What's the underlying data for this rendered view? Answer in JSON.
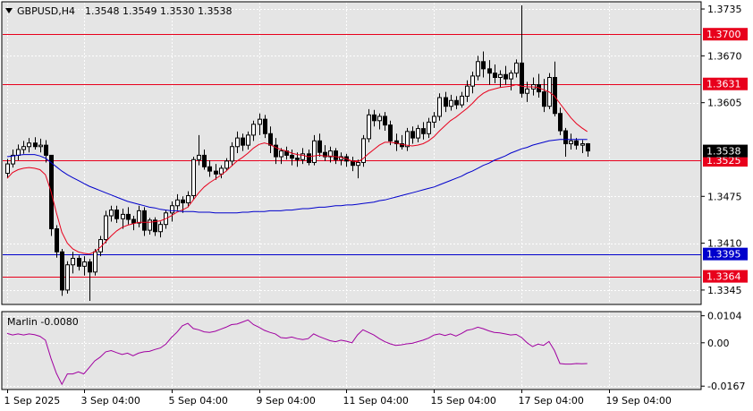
{
  "header": {
    "symbol": "GBPUSD,H4",
    "ohlc": "1.3548 1.3549 1.3530 1.3538"
  },
  "indicator": {
    "label": "Marlin -0.0080"
  },
  "colors": {
    "background": "#e5e5e5",
    "bull_candle": "#ffffff",
    "bear_candle": "#000000",
    "grid": "#ffffff",
    "ma_fast": "#e8001c",
    "ma_slow": "#0000cc",
    "marlin": "#a000a0",
    "level_red": "#e8001c",
    "level_blue": "#0000cc"
  },
  "chart_data": [
    {
      "type": "candlestick",
      "ylim": [
        1.3325,
        1.3745
      ],
      "y_ticks": [
        "1.3735",
        "1.3670",
        "1.3605",
        "1.3475",
        "1.3410",
        "1.3345"
      ],
      "x_ticks": [
        "1 Sep 2025",
        "3 Sep 04:00",
        "5 Sep 04:00",
        "9 Sep 04:00",
        "11 Sep 04:00",
        "15 Sep 04:00",
        "17 Sep 04:00",
        "19 Sep 04:00"
      ],
      "x_tick_index": [
        0,
        14,
        30,
        46,
        62,
        78,
        94,
        110
      ],
      "levels": [
        {
          "value": 1.37,
          "label": "1.3700",
          "color": "red"
        },
        {
          "value": 1.3631,
          "label": "1.3631",
          "color": "red"
        },
        {
          "value": 1.3525,
          "label": "1.3525",
          "color": "red"
        },
        {
          "value": 1.3395,
          "label": "1.3395",
          "color": "blue"
        },
        {
          "value": 1.3364,
          "label": "1.3364",
          "color": "red"
        }
      ],
      "current_price": "1.3538",
      "candles": [
        [
          1.3507,
          1.3527,
          1.35,
          1.352
        ],
        [
          1.352,
          1.354,
          1.3515,
          1.3532
        ],
        [
          1.3532,
          1.3547,
          1.3525,
          1.354
        ],
        [
          1.354,
          1.3552,
          1.3534,
          1.3544
        ],
        [
          1.3544,
          1.3556,
          1.3536,
          1.3549
        ],
        [
          1.3549,
          1.3557,
          1.354,
          1.3544
        ],
        [
          1.3544,
          1.3555,
          1.3536,
          1.3546
        ],
        [
          1.3546,
          1.3553,
          1.3522,
          1.3532
        ],
        [
          1.3532,
          1.3532,
          1.342,
          1.343
        ],
        [
          1.343,
          1.3435,
          1.339,
          1.3398
        ],
        [
          1.3398,
          1.3402,
          1.3337,
          1.3345
        ],
        [
          1.3345,
          1.3385,
          1.334,
          1.338
        ],
        [
          1.338,
          1.3398,
          1.3368,
          1.3389
        ],
        [
          1.3389,
          1.3393,
          1.3372,
          1.3378
        ],
        [
          1.3378,
          1.3392,
          1.3365,
          1.3384
        ],
        [
          1.3384,
          1.3388,
          1.333,
          1.337
        ],
        [
          1.337,
          1.3402,
          1.3365,
          1.3398
        ],
        [
          1.3398,
          1.342,
          1.3392,
          1.3415
        ],
        [
          1.3415,
          1.3455,
          1.341,
          1.3448
        ],
        [
          1.3448,
          1.3462,
          1.344,
          1.3456
        ],
        [
          1.3456,
          1.3462,
          1.3438,
          1.3444
        ],
        [
          1.3444,
          1.3458,
          1.343,
          1.345
        ],
        [
          1.345,
          1.346,
          1.3436,
          1.3443
        ],
        [
          1.3443,
          1.3448,
          1.3428,
          1.3438
        ],
        [
          1.3438,
          1.3462,
          1.3432,
          1.3455
        ],
        [
          1.3455,
          1.346,
          1.342,
          1.3428
        ],
        [
          1.3428,
          1.3445,
          1.3422,
          1.3442
        ],
        [
          1.3442,
          1.3446,
          1.342,
          1.3426
        ],
        [
          1.3426,
          1.344,
          1.3418,
          1.3436
        ],
        [
          1.3436,
          1.3456,
          1.343,
          1.3452
        ],
        [
          1.3452,
          1.3468,
          1.344,
          1.3462
        ],
        [
          1.3462,
          1.3478,
          1.3456,
          1.347
        ],
        [
          1.347,
          1.3475,
          1.3452,
          1.3466
        ],
        [
          1.3466,
          1.3482,
          1.346,
          1.3476
        ],
        [
          1.3476,
          1.353,
          1.347,
          1.3526
        ],
        [
          1.3526,
          1.356,
          1.3518,
          1.3532
        ],
        [
          1.3532,
          1.354,
          1.3512,
          1.3516
        ],
        [
          1.3516,
          1.3525,
          1.3502,
          1.351
        ],
        [
          1.351,
          1.352,
          1.3498,
          1.3506
        ],
        [
          1.3506,
          1.3518,
          1.35,
          1.3514
        ],
        [
          1.3514,
          1.3528,
          1.351,
          1.3524
        ],
        [
          1.3524,
          1.355,
          1.3518,
          1.3544
        ],
        [
          1.3544,
          1.3565,
          1.3535,
          1.3556
        ],
        [
          1.3556,
          1.3562,
          1.3538,
          1.3546
        ],
        [
          1.3546,
          1.3565,
          1.354,
          1.356
        ],
        [
          1.356,
          1.358,
          1.3552,
          1.3575
        ],
        [
          1.3575,
          1.359,
          1.356,
          1.3582
        ],
        [
          1.3582,
          1.3588,
          1.3556,
          1.3562
        ],
        [
          1.3562,
          1.3572,
          1.3535,
          1.3546
        ],
        [
          1.3546,
          1.3556,
          1.352,
          1.353
        ],
        [
          1.353,
          1.3542,
          1.352,
          1.3538
        ],
        [
          1.3538,
          1.3544,
          1.3526,
          1.3532
        ],
        [
          1.3532,
          1.354,
          1.3518,
          1.3528
        ],
        [
          1.3528,
          1.3536,
          1.3516,
          1.3526
        ],
        [
          1.3526,
          1.3542,
          1.352,
          1.3534
        ],
        [
          1.3534,
          1.354,
          1.3518,
          1.3522
        ],
        [
          1.3522,
          1.356,
          1.3518,
          1.3552
        ],
        [
          1.3552,
          1.3562,
          1.353,
          1.3536
        ],
        [
          1.3536,
          1.3546,
          1.3524,
          1.353
        ],
        [
          1.353,
          1.3544,
          1.3522,
          1.3538
        ],
        [
          1.3538,
          1.3542,
          1.352,
          1.3526
        ],
        [
          1.3526,
          1.3536,
          1.3518,
          1.353
        ],
        [
          1.353,
          1.3534,
          1.3516,
          1.3524
        ],
        [
          1.3524,
          1.353,
          1.351,
          1.3518
        ],
        [
          1.3518,
          1.3526,
          1.35,
          1.3522
        ],
        [
          1.3522,
          1.356,
          1.3516,
          1.3555
        ],
        [
          1.3555,
          1.3596,
          1.355,
          1.3588
        ],
        [
          1.3588,
          1.3595,
          1.3572,
          1.358
        ],
        [
          1.358,
          1.359,
          1.3568,
          1.3586
        ],
        [
          1.3586,
          1.3592,
          1.3566,
          1.3574
        ],
        [
          1.3574,
          1.358,
          1.3546,
          1.3552
        ],
        [
          1.3552,
          1.3562,
          1.3538,
          1.3548
        ],
        [
          1.3548,
          1.356,
          1.354,
          1.3544
        ],
        [
          1.3544,
          1.357,
          1.3538,
          1.3565
        ],
        [
          1.3565,
          1.3572,
          1.3548,
          1.3556
        ],
        [
          1.3556,
          1.3574,
          1.355,
          1.3569
        ],
        [
          1.3569,
          1.3578,
          1.3554,
          1.3562
        ],
        [
          1.3562,
          1.3584,
          1.3556,
          1.3578
        ],
        [
          1.3578,
          1.3592,
          1.357,
          1.3586
        ],
        [
          1.3586,
          1.3618,
          1.358,
          1.3612
        ],
        [
          1.3612,
          1.362,
          1.3592,
          1.36
        ],
        [
          1.36,
          1.3616,
          1.3594,
          1.3608
        ],
        [
          1.3608,
          1.3614,
          1.3596,
          1.3602
        ],
        [
          1.3602,
          1.362,
          1.3598,
          1.3614
        ],
        [
          1.3614,
          1.3636,
          1.3606,
          1.3628
        ],
        [
          1.3628,
          1.3648,
          1.3618,
          1.3642
        ],
        [
          1.3642,
          1.367,
          1.3636,
          1.3662
        ],
        [
          1.3662,
          1.3676,
          1.364,
          1.3652
        ],
        [
          1.3652,
          1.3664,
          1.363,
          1.3646
        ],
        [
          1.3646,
          1.3658,
          1.3632,
          1.364
        ],
        [
          1.364,
          1.365,
          1.3626,
          1.3644
        ],
        [
          1.3644,
          1.3656,
          1.363,
          1.3638
        ],
        [
          1.3638,
          1.365,
          1.3622,
          1.3646
        ],
        [
          1.3646,
          1.3665,
          1.364,
          1.366
        ],
        [
          1.366,
          1.374,
          1.3612,
          1.3618
        ],
        [
          1.3618,
          1.3634,
          1.3606,
          1.3624
        ],
        [
          1.3624,
          1.364,
          1.3615,
          1.363
        ],
        [
          1.363,
          1.3645,
          1.3612,
          1.362
        ],
        [
          1.362,
          1.3638,
          1.3592,
          1.36
        ],
        [
          1.36,
          1.3646,
          1.3596,
          1.364
        ],
        [
          1.364,
          1.3662,
          1.3586,
          1.359
        ],
        [
          1.359,
          1.3598,
          1.356,
          1.3566
        ],
        [
          1.3566,
          1.357,
          1.353,
          1.3548
        ],
        [
          1.3548,
          1.3562,
          1.354,
          1.3552
        ],
        [
          1.3552,
          1.3556,
          1.354,
          1.3546
        ],
        [
          1.3546,
          1.3553,
          1.3535,
          1.3548
        ],
        [
          1.3548,
          1.3549,
          1.353,
          1.3538
        ]
      ],
      "ma_fast": [
        1.35,
        1.3508,
        1.3512,
        1.3514,
        1.3515,
        1.3514,
        1.3512,
        1.3505,
        1.3482,
        1.3452,
        1.3425,
        1.341,
        1.3402,
        1.3398,
        1.3396,
        1.3395,
        1.3398,
        1.3404,
        1.3412,
        1.342,
        1.3427,
        1.3432,
        1.3435,
        1.3437,
        1.3439,
        1.3439,
        1.3439,
        1.344,
        1.3441,
        1.3444,
        1.3448,
        1.3453,
        1.3456,
        1.346,
        1.347,
        1.348,
        1.3488,
        1.3494,
        1.3499,
        1.3504,
        1.351,
        1.3517,
        1.3524,
        1.3529,
        1.3535,
        1.3542,
        1.3547,
        1.3549,
        1.3547,
        1.3543,
        1.354,
        1.3538,
        1.3535,
        1.3533,
        1.3532,
        1.353,
        1.3531,
        1.3532,
        1.3531,
        1.3531,
        1.353,
        1.3529,
        1.3527,
        1.3524,
        1.3523,
        1.3527,
        1.3534,
        1.354,
        1.3546,
        1.355,
        1.355,
        1.3549,
        1.3547,
        1.3546,
        1.3545,
        1.3546,
        1.3548,
        1.3552,
        1.3558,
        1.3566,
        1.3573,
        1.358,
        1.3585,
        1.3591,
        1.3597,
        1.3604,
        1.3612,
        1.3618,
        1.3622,
        1.3624,
        1.3626,
        1.3627,
        1.3628,
        1.363,
        1.3628,
        1.3627,
        1.3627,
        1.3626,
        1.3623,
        1.362,
        1.3614,
        1.3604,
        1.3594,
        1.3584,
        1.3576,
        1.357,
        1.3565
      ],
      "ma_slow": [
        1.353,
        1.3531,
        1.3532,
        1.3533,
        1.3533,
        1.3533,
        1.3531,
        1.3528,
        1.3522,
        1.3516,
        1.351,
        1.3505,
        1.3501,
        1.3497,
        1.3493,
        1.3489,
        1.3486,
        1.3483,
        1.348,
        1.3477,
        1.3474,
        1.3471,
        1.3468,
        1.3466,
        1.3464,
        1.3462,
        1.346,
        1.3459,
        1.3457,
        1.3456,
        1.3455,
        1.3455,
        1.3454,
        1.3454,
        1.3454,
        1.3453,
        1.3453,
        1.3453,
        1.3452,
        1.3452,
        1.3452,
        1.3452,
        1.3452,
        1.3453,
        1.3453,
        1.3454,
        1.3454,
        1.3454,
        1.3455,
        1.3455,
        1.3455,
        1.3456,
        1.3456,
        1.3457,
        1.3458,
        1.3458,
        1.3459,
        1.346,
        1.346,
        1.3461,
        1.3462,
        1.3462,
        1.3463,
        1.3463,
        1.3464,
        1.3465,
        1.3466,
        1.3467,
        1.3469,
        1.347,
        1.3472,
        1.3474,
        1.3476,
        1.3478,
        1.348,
        1.3482,
        1.3484,
        1.3486,
        1.3488,
        1.3491,
        1.3494,
        1.3497,
        1.35,
        1.3503,
        1.3507,
        1.351,
        1.3514,
        1.3518,
        1.3521,
        1.3525,
        1.3528,
        1.3531,
        1.3535,
        1.3538,
        1.3541,
        1.3543,
        1.3546,
        1.3548,
        1.355,
        1.3552,
        1.3553,
        1.3554,
        1.3554,
        1.3554,
        1.3554,
        1.3554,
        1.3554
      ]
    },
    {
      "type": "line",
      "name": "Marlin",
      "ylim": [
        -0.018,
        0.012
      ],
      "y_ticks": [
        "0.0104",
        "0.00",
        "-0.0167"
      ],
      "values": [
        0.0036,
        0.003,
        0.0034,
        0.003,
        0.0034,
        0.0031,
        0.0025,
        0.001,
        -0.006,
        -0.0118,
        -0.016,
        -0.012,
        -0.012,
        -0.0112,
        -0.012,
        -0.0095,
        -0.007,
        -0.0055,
        -0.0035,
        -0.003,
        -0.0038,
        -0.0045,
        -0.004,
        -0.005,
        -0.004,
        -0.0035,
        -0.0033,
        -0.0026,
        -0.002,
        -0.0005,
        0.002,
        0.004,
        0.0065,
        0.0075,
        0.0055,
        0.005,
        0.0042,
        0.004,
        0.0044,
        0.0052,
        0.006,
        0.007,
        0.0072,
        0.008,
        0.0088,
        0.007,
        0.006,
        0.0048,
        0.004,
        0.0034,
        0.002,
        0.0018,
        0.0022,
        0.0016,
        0.0012,
        0.0016,
        0.0034,
        0.0024,
        0.0016,
        0.0008,
        0.0004,
        0.001,
        0.0006,
        0.0,
        0.003,
        0.005,
        0.004,
        0.003,
        0.0016,
        0.0004,
        -0.0004,
        -0.001,
        -0.0008,
        -0.0004,
        -0.0002,
        0.0004,
        0.001,
        0.0018,
        0.003,
        0.0034,
        0.0028,
        0.0034,
        0.0026,
        0.0036,
        0.0048,
        0.0052,
        0.006,
        0.0054,
        0.0046,
        0.004,
        0.0038,
        0.0034,
        0.003,
        0.0032,
        0.002,
        0.0,
        -0.0015,
        -0.0005,
        -0.001,
        0.0005,
        -0.003,
        -0.008,
        -0.0082,
        -0.0082,
        -0.008,
        -0.0081,
        -0.008
      ]
    }
  ]
}
